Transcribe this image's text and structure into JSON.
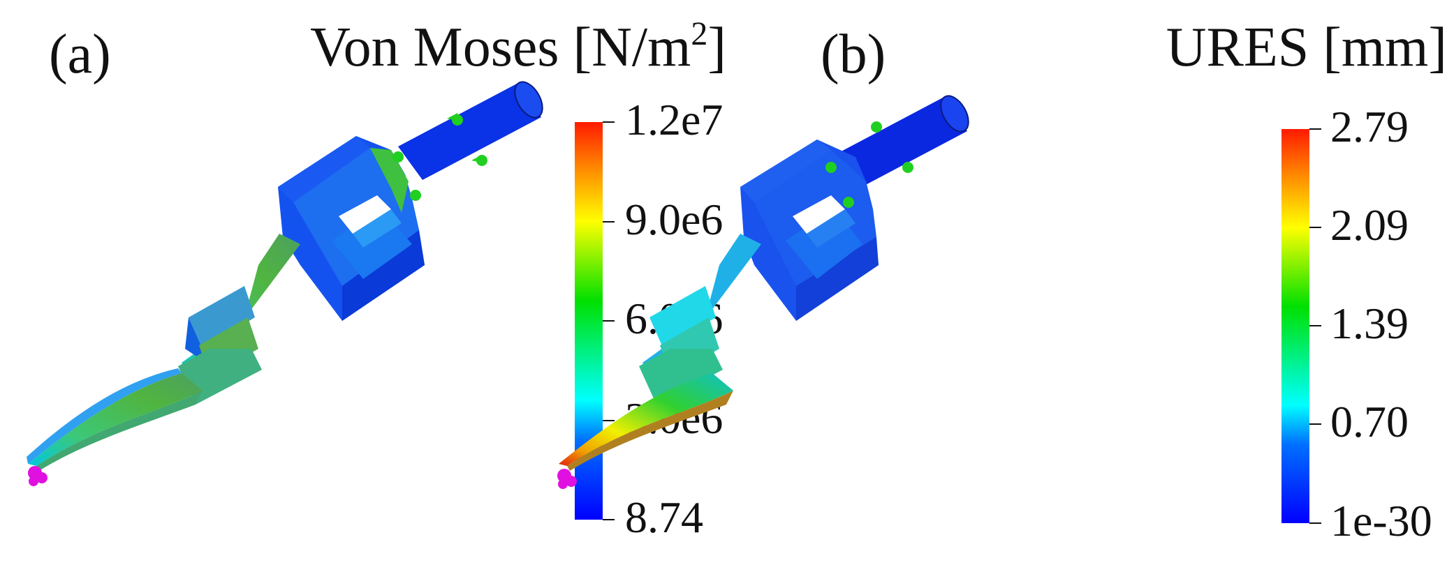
{
  "panels": [
    {
      "label": "(a)",
      "title_prefix": "Von Moses [N/m",
      "title_sup": "2",
      "title_suffix": "]",
      "colorbar": {
        "max_label": "1.2e7",
        "labels": [
          "1.2e7",
          "9.0e6",
          "6.0e6",
          "3.0e6",
          "8.74"
        ],
        "colors": [
          "#ff1a00",
          "#ff8c00",
          "#ffff00",
          "#00e000",
          "#00ffff",
          "#0000ff"
        ]
      }
    },
    {
      "label": "(b)",
      "title_prefix": "URES [mm",
      "title_sup": "",
      "title_suffix": "]",
      "colorbar": {
        "labels": [
          "2.79",
          "2.09",
          "1.39",
          "0.70",
          "1e-30"
        ],
        "colors": [
          "#ff1a00",
          "#ff8c00",
          "#ffff00",
          "#00e000",
          "#00ffff",
          "#0000ff"
        ]
      }
    }
  ],
  "colors": {
    "fixture_marker": "#e010e0",
    "load_marker": "#20d020"
  }
}
